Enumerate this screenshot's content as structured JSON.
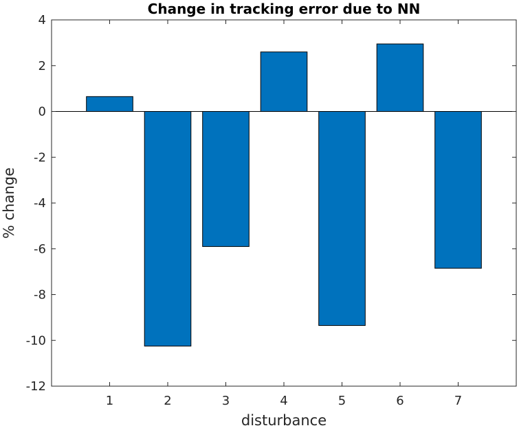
{
  "chart_data": {
    "type": "bar",
    "title": "Change in tracking error due to NN",
    "xlabel": "disturbance",
    "ylabel": "% change",
    "categories": [
      "1",
      "2",
      "3",
      "4",
      "5",
      "6",
      "7"
    ],
    "values": [
      0.65,
      -10.25,
      -5.9,
      2.6,
      -9.35,
      2.95,
      -6.85
    ],
    "xlim": [
      0,
      8
    ],
    "ylim": [
      -12,
      4
    ],
    "yticks": [
      4,
      2,
      0,
      -2,
      -4,
      -6,
      -8,
      -10,
      -12
    ],
    "yticklabels": [
      "4",
      "2",
      "0",
      "-2",
      "-4",
      "-6",
      "-8",
      "-10",
      "-12"
    ],
    "grid": false,
    "legend": "none",
    "bar_color": "#0072BD",
    "edge_color": "#000000"
  }
}
